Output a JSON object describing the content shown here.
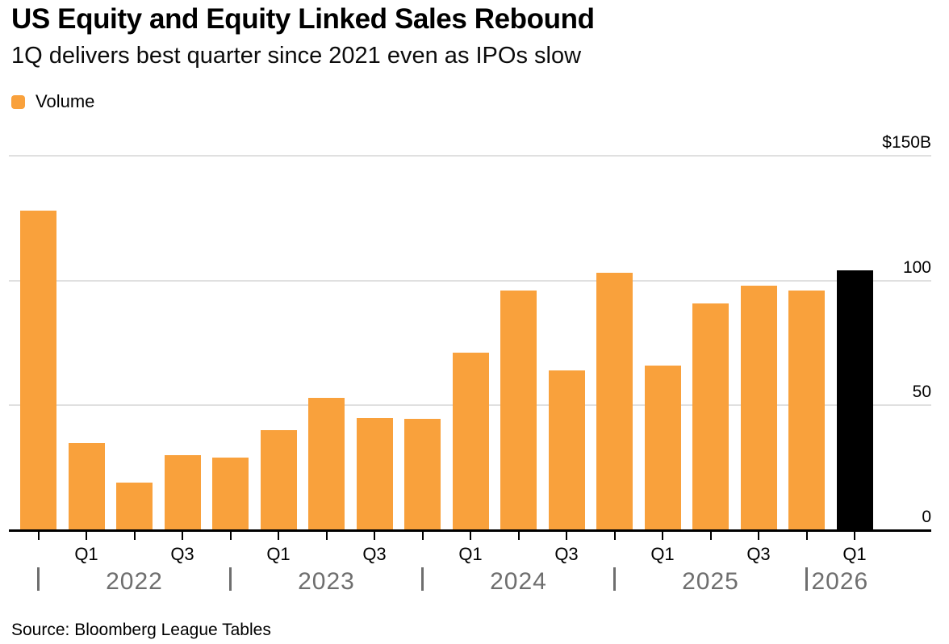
{
  "header": {
    "title": "US Equity and Equity Linked Sales Rebound",
    "subtitle": "1Q delivers best quarter since 2021 even as IPOs slow"
  },
  "legend": {
    "label": "Volume",
    "swatch_color": "#F9A13C"
  },
  "source": {
    "text": "Source: Bloomberg League Tables"
  },
  "chart_data": {
    "type": "bar",
    "title": "US Equity and Equity Linked Sales Rebound",
    "subtitle": "1Q delivers best quarter since 2021 even as IPOs slow",
    "unit": "USD billions",
    "series_name": "Volume",
    "categories": [
      "Q4 2021",
      "Q1 2022",
      "Q2 2022",
      "Q3 2022",
      "Q4 2022",
      "Q1 2023",
      "Q2 2023",
      "Q3 2023",
      "Q4 2023",
      "Q1 2024",
      "Q2 2024",
      "Q3 2024",
      "Q4 2024",
      "Q1 2025",
      "Q2 2025",
      "Q3 2025",
      "Q4 2025",
      "Q1 2026"
    ],
    "values": [
      128,
      35,
      19,
      30,
      29,
      40,
      53,
      45,
      44.5,
      71,
      96,
      64,
      103,
      66,
      91,
      98,
      96,
      104
    ],
    "bar_color": "#F9A13C",
    "highlight": {
      "index": 17,
      "color": "#000000",
      "category": "Q1 2026"
    },
    "y_axis": {
      "min": 0,
      "max": 150,
      "grid": true,
      "labels_position": "right-above-gridline",
      "ticks": [
        {
          "value": 150,
          "label": "$150B"
        },
        {
          "value": 100,
          "label": "100"
        },
        {
          "value": 50,
          "label": "50"
        },
        {
          "value": 0,
          "label": "0"
        }
      ],
      "grid_color": "#E0E0E0",
      "axis_color": "#000000"
    },
    "x_axis": {
      "tick_every_bar": true,
      "quarter_labels": [
        {
          "bar": 1,
          "text": "Q1"
        },
        {
          "bar": 3,
          "text": "Q3"
        },
        {
          "bar": 5,
          "text": "Q1"
        },
        {
          "bar": 7,
          "text": "Q3"
        },
        {
          "bar": 9,
          "text": "Q1"
        },
        {
          "bar": 11,
          "text": "Q3"
        },
        {
          "bar": 13,
          "text": "Q1"
        },
        {
          "bar": 15,
          "text": "Q3"
        },
        {
          "bar": 17,
          "text": "Q1"
        }
      ],
      "year_groups": [
        {
          "separator_bar": 0,
          "label": "2022",
          "label_bar": 2,
          "align": "center"
        },
        {
          "separator_bar": 4,
          "label": "2023",
          "label_bar": 6,
          "align": "center"
        },
        {
          "separator_bar": 8,
          "label": "2024",
          "label_bar": 10,
          "align": "center"
        },
        {
          "separator_bar": 12,
          "label": "2025",
          "label_bar": 14,
          "align": "center"
        },
        {
          "separator_bar": 16,
          "label": "2026",
          "label_bar": 17,
          "align": "left-of-separator"
        }
      ],
      "year_color": "#6E6E6E"
    }
  }
}
